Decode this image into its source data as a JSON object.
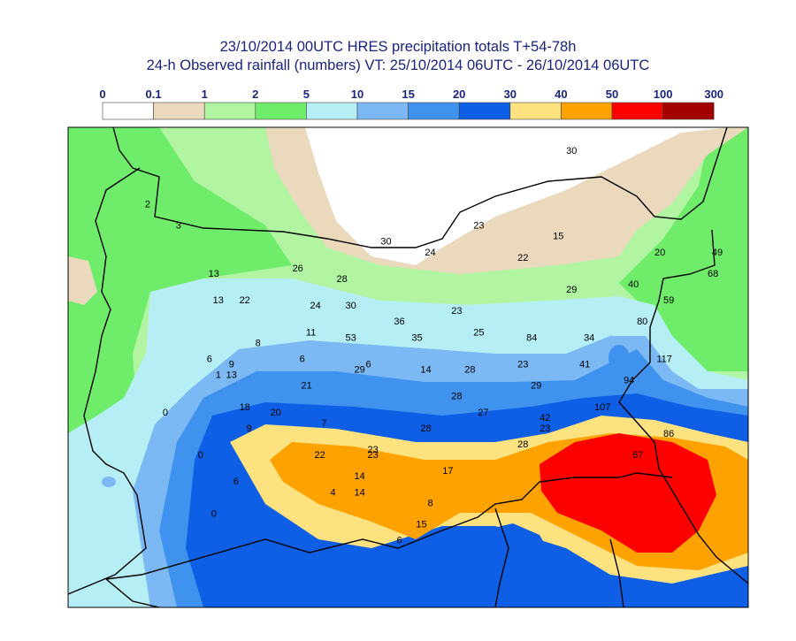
{
  "title": {
    "line1": "23/10/2014 00UTC HRES precipitation totals T+54-78h",
    "line2": "24-h Observed rainfall (numbers) VT: 25/10/2014 06UTC - 26/10/2014 06UTC"
  },
  "legend": {
    "thresholds": [
      "0",
      "0.1",
      "1",
      "2",
      "5",
      "10",
      "15",
      "20",
      "30",
      "40",
      "50",
      "100",
      "300"
    ],
    "colors": [
      "#ffffff",
      "#ead9bd",
      "#b1f5a3",
      "#6fec6a",
      "#b6eef6",
      "#7cb9f4",
      "#3f93ee",
      "#0e5fe6",
      "#fde27f",
      "#fda200",
      "#fd0000",
      "#a30000"
    ]
  },
  "palette": {
    "title": "#1a237e",
    "border": "#000000",
    "frame": "#000000"
  },
  "observations": [
    {
      "v": "2",
      "lon": 1.6,
      "lat": 9.5
    },
    {
      "v": "3",
      "lon": 2.3,
      "lat": 9.1
    },
    {
      "v": "30",
      "lon": 7.0,
      "lat": 8.8
    },
    {
      "v": "24",
      "lon": 8.0,
      "lat": 8.6
    },
    {
      "v": "23",
      "lon": 9.1,
      "lat": 9.1
    },
    {
      "v": "30",
      "lon": 11.2,
      "lat": 10.5
    },
    {
      "v": "15",
      "lon": 10.9,
      "lat": 8.9
    },
    {
      "v": "22",
      "lon": 10.1,
      "lat": 8.5
    },
    {
      "v": "20",
      "lon": 13.2,
      "lat": 8.6
    },
    {
      "v": "49",
      "lon": 14.5,
      "lat": 8.6
    },
    {
      "v": "68",
      "lon": 14.4,
      "lat": 8.2
    },
    {
      "v": "26",
      "lon": 5.0,
      "lat": 8.3
    },
    {
      "v": "28",
      "lon": 6.0,
      "lat": 8.1
    },
    {
      "v": "13",
      "lon": 3.1,
      "lat": 8.2
    },
    {
      "v": "29",
      "lon": 11.2,
      "lat": 7.9
    },
    {
      "v": "40",
      "lon": 12.6,
      "lat": 8.0
    },
    {
      "v": "59",
      "lon": 13.4,
      "lat": 7.7
    },
    {
      "v": "13",
      "lon": 3.2,
      "lat": 7.7
    },
    {
      "v": "22",
      "lon": 3.8,
      "lat": 7.7
    },
    {
      "v": "24",
      "lon": 5.4,
      "lat": 7.6
    },
    {
      "v": "30",
      "lon": 6.2,
      "lat": 7.6
    },
    {
      "v": "23",
      "lon": 8.6,
      "lat": 7.5
    },
    {
      "v": "36",
      "lon": 7.3,
      "lat": 7.3
    },
    {
      "v": "80",
      "lon": 12.8,
      "lat": 7.3
    },
    {
      "v": "11",
      "lon": 5.3,
      "lat": 7.1
    },
    {
      "v": "53",
      "lon": 6.2,
      "lat": 7.0
    },
    {
      "v": "35",
      "lon": 7.7,
      "lat": 7.0
    },
    {
      "v": "25",
      "lon": 9.1,
      "lat": 7.1
    },
    {
      "v": "84",
      "lon": 10.3,
      "lat": 7.0
    },
    {
      "v": "34",
      "lon": 11.6,
      "lat": 7.0
    },
    {
      "v": "8",
      "lon": 4.1,
      "lat": 6.9
    },
    {
      "v": "6",
      "lon": 3.0,
      "lat": 6.6
    },
    {
      "v": "6",
      "lon": 5.1,
      "lat": 6.6
    },
    {
      "v": "117",
      "lon": 13.3,
      "lat": 6.6
    },
    {
      "v": "9",
      "lon": 3.5,
      "lat": 6.5
    },
    {
      "v": "29",
      "lon": 6.4,
      "lat": 6.4
    },
    {
      "v": "6",
      "lon": 6.6,
      "lat": 6.5
    },
    {
      "v": "14",
      "lon": 7.9,
      "lat": 6.4
    },
    {
      "v": "28",
      "lon": 8.9,
      "lat": 6.4
    },
    {
      "v": "23",
      "lon": 10.1,
      "lat": 6.5
    },
    {
      "v": "41",
      "lon": 11.5,
      "lat": 6.5
    },
    {
      "v": "1",
      "lon": 3.2,
      "lat": 6.3
    },
    {
      "v": "13",
      "lon": 3.5,
      "lat": 6.3
    },
    {
      "v": "21",
      "lon": 5.2,
      "lat": 6.1
    },
    {
      "v": "94",
      "lon": 12.5,
      "lat": 6.2
    },
    {
      "v": "29",
      "lon": 10.4,
      "lat": 6.1
    },
    {
      "v": "28",
      "lon": 8.6,
      "lat": 5.9
    },
    {
      "v": "107",
      "lon": 11.9,
      "lat": 5.7
    },
    {
      "v": "18",
      "lon": 3.8,
      "lat": 5.7
    },
    {
      "v": "20",
      "lon": 4.5,
      "lat": 5.6
    },
    {
      "v": "0",
      "lon": 2.0,
      "lat": 5.6
    },
    {
      "v": "27",
      "lon": 9.2,
      "lat": 5.6
    },
    {
      "v": "42",
      "lon": 10.6,
      "lat": 5.5
    },
    {
      "v": "7",
      "lon": 5.6,
      "lat": 5.4
    },
    {
      "v": "28",
      "lon": 7.9,
      "lat": 5.3
    },
    {
      "v": "23",
      "lon": 10.6,
      "lat": 5.3
    },
    {
      "v": "9",
      "lon": 3.9,
      "lat": 5.3
    },
    {
      "v": "86",
      "lon": 13.4,
      "lat": 5.2
    },
    {
      "v": "28",
      "lon": 10.1,
      "lat": 5.0
    },
    {
      "v": "23",
      "lon": 6.7,
      "lat": 4.9
    },
    {
      "v": "22",
      "lon": 5.5,
      "lat": 4.8
    },
    {
      "v": "23",
      "lon": 6.7,
      "lat": 4.8
    },
    {
      "v": "0",
      "lon": 2.8,
      "lat": 4.8
    },
    {
      "v": "67",
      "lon": 12.7,
      "lat": 4.8
    },
    {
      "v": "17",
      "lon": 8.4,
      "lat": 4.5
    },
    {
      "v": "14",
      "lon": 6.4,
      "lat": 4.4
    },
    {
      "v": "6",
      "lon": 3.6,
      "lat": 4.3
    },
    {
      "v": "4",
      "lon": 5.8,
      "lat": 4.1
    },
    {
      "v": "14",
      "lon": 6.4,
      "lat": 4.1
    },
    {
      "v": "8",
      "lon": 8.0,
      "lat": 3.9
    },
    {
      "v": "0",
      "lon": 3.1,
      "lat": 3.7
    },
    {
      "v": "15",
      "lon": 7.8,
      "lat": 3.5
    },
    {
      "v": "6",
      "lon": 7.3,
      "lat": 3.2
    }
  ]
}
